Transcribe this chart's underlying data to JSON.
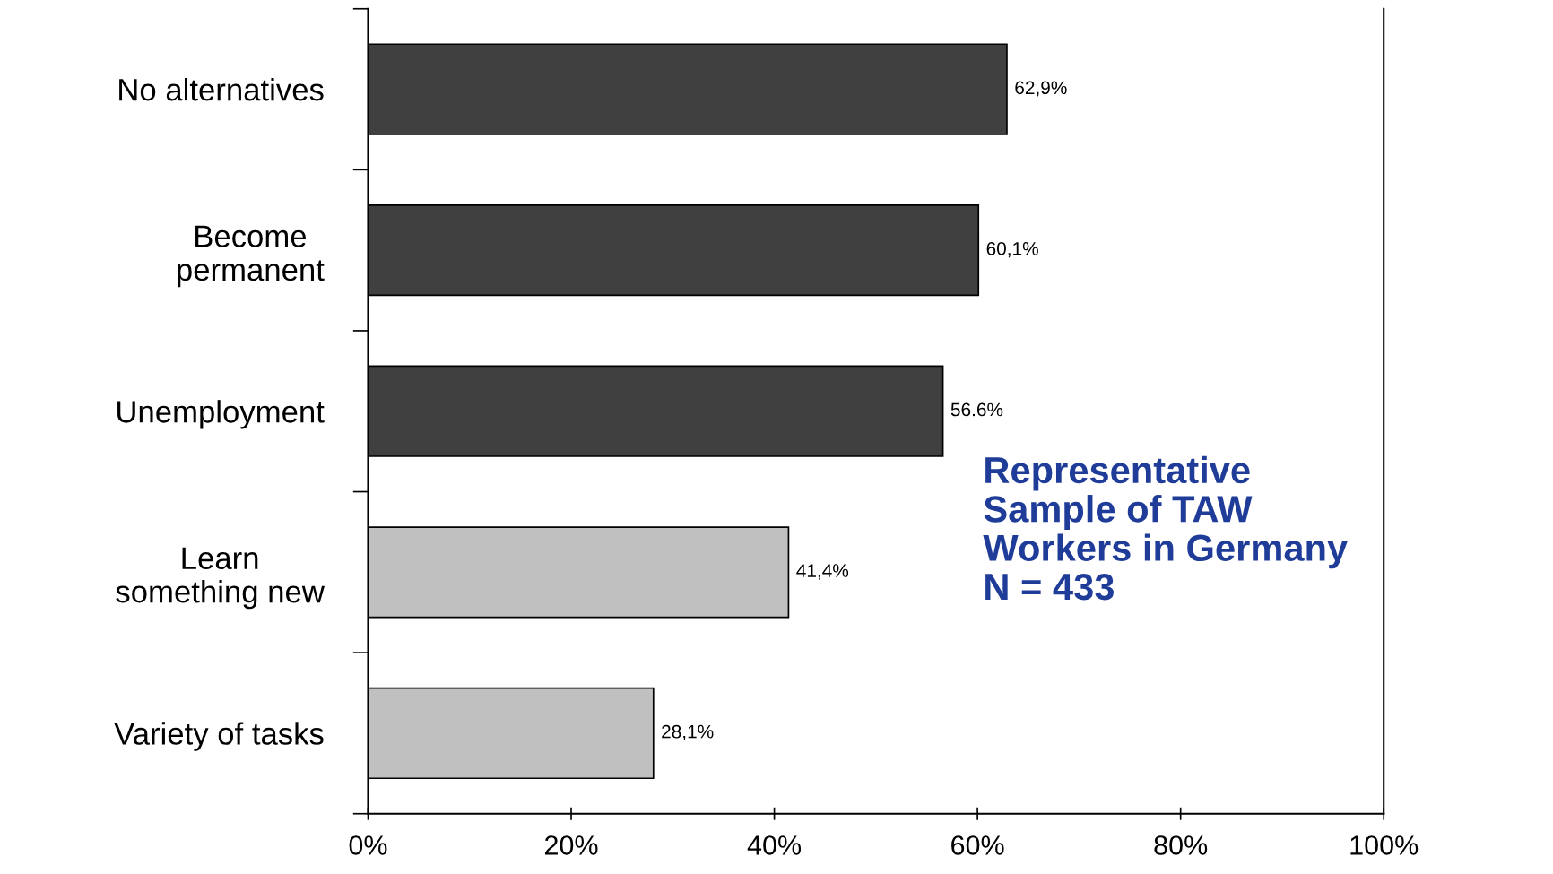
{
  "chart_data": {
    "type": "bar",
    "orientation": "horizontal",
    "categories": [
      "No alternatives",
      "Become\npermanent",
      "Unemployment",
      "Learn\nsomething new",
      "Variety of tasks"
    ],
    "values": [
      62.9,
      60.1,
      56.6,
      41.4,
      28.1
    ],
    "colors": [
      "#404040",
      "#404040",
      "#404040",
      "#c0c0c0",
      "#c0c0c0"
    ],
    "value_labels": [
      "62,9%",
      "60,1%",
      "56.6%",
      "41,4%",
      "28,1%"
    ],
    "xlim": [
      0,
      100
    ],
    "xticks": [
      {
        "value": 0,
        "label": "0%"
      },
      {
        "value": 20,
        "label": "20%"
      },
      {
        "value": 40,
        "label": "40%"
      },
      {
        "value": 60,
        "label": "60%"
      },
      {
        "value": 80,
        "label": "80%"
      },
      {
        "value": 100,
        "label": "100%"
      }
    ],
    "grid": false,
    "legend": false,
    "annotations": [
      "Representative\nSample of TAW\nWorkers in Germany\nN = 433"
    ]
  }
}
